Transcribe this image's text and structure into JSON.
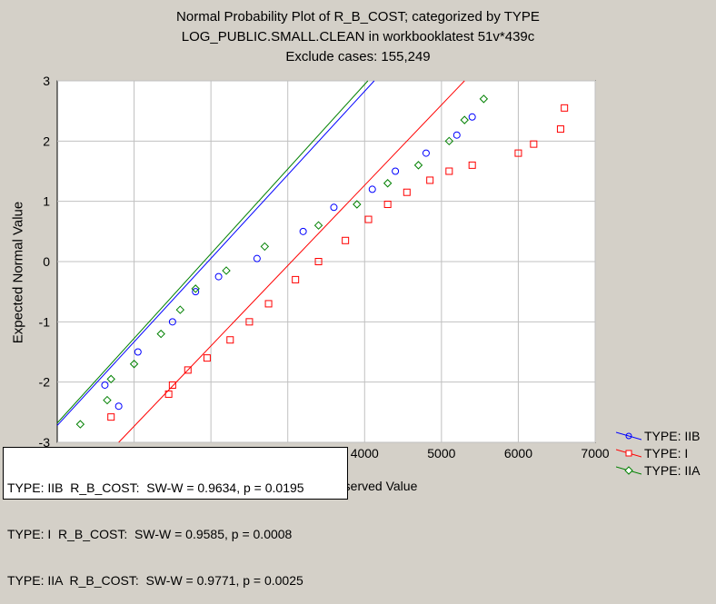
{
  "title_lines": [
    "Normal Probability Plot of R_B_COST; categorized by TYPE",
    "LOG_PUBLIC.SMALL.CLEAN in workbooklatest 51v*439c",
    "Exclude cases: 155,249"
  ],
  "stats": [
    "TYPE: IIB  R_B_COST:  SW-W = 0.9634, p = 0.0195",
    "TYPE: I  R_B_COST:  SW-W = 0.9585, p = 0.0008",
    "TYPE: IIA  R_B_COST:  SW-W = 0.9771, p = 0.0025"
  ],
  "chart_data": {
    "type": "scatter",
    "xlabel": "Observed Value",
    "ylabel": "Expected Normal Value",
    "xlim": [
      0,
      7000
    ],
    "ylim": [
      -3,
      3
    ],
    "x_ticks": [
      1000,
      2000,
      3000,
      4000,
      5000,
      6000,
      7000
    ],
    "y_ticks": [
      -3,
      -2,
      -1,
      0,
      1,
      2,
      3
    ],
    "grid": true,
    "legend_position": "bottom-right",
    "series": [
      {
        "name": "TYPE: IIB",
        "color": "#0000ff",
        "marker": "circle",
        "fit": [
          [
            0,
            -2.72
          ],
          [
            4125,
            3.0
          ]
        ],
        "points": [
          [
            800,
            -2.4
          ],
          [
            620,
            -2.05
          ],
          [
            1050,
            -1.5
          ],
          [
            1500,
            -1.0
          ],
          [
            1800,
            -0.5
          ],
          [
            2100,
            -0.25
          ],
          [
            2600,
            0.05
          ],
          [
            3200,
            0.5
          ],
          [
            3600,
            0.9
          ],
          [
            4100,
            1.2
          ],
          [
            4400,
            1.5
          ],
          [
            4800,
            1.8
          ],
          [
            5200,
            2.1
          ],
          [
            5400,
            2.4
          ]
        ]
      },
      {
        "name": "TYPE: I",
        "color": "#ff0000",
        "marker": "square",
        "fit": [
          [
            800,
            -3.0
          ],
          [
            5300,
            3.0
          ]
        ],
        "points": [
          [
            700,
            -2.58
          ],
          [
            1450,
            -2.2
          ],
          [
            1500,
            -2.05
          ],
          [
            1700,
            -1.8
          ],
          [
            1950,
            -1.6
          ],
          [
            2250,
            -1.3
          ],
          [
            2500,
            -1.0
          ],
          [
            2750,
            -0.7
          ],
          [
            3100,
            -0.3
          ],
          [
            3400,
            0.0
          ],
          [
            3750,
            0.35
          ],
          [
            4050,
            0.7
          ],
          [
            4300,
            0.95
          ],
          [
            4550,
            1.15
          ],
          [
            4850,
            1.35
          ],
          [
            5100,
            1.5
          ],
          [
            5400,
            1.6
          ],
          [
            6000,
            1.8
          ],
          [
            6200,
            1.95
          ],
          [
            6550,
            2.2
          ],
          [
            6600,
            2.55
          ]
        ]
      },
      {
        "name": "TYPE: IIA",
        "color": "#008000",
        "marker": "diamond",
        "fit": [
          [
            0,
            -2.68
          ],
          [
            4042,
            3.0
          ]
        ],
        "points": [
          [
            300,
            -2.7
          ],
          [
            650,
            -2.3
          ],
          [
            700,
            -1.95
          ],
          [
            1000,
            -1.7
          ],
          [
            1350,
            -1.2
          ],
          [
            1600,
            -0.8
          ],
          [
            1800,
            -0.45
          ],
          [
            2200,
            -0.15
          ],
          [
            2700,
            0.25
          ],
          [
            3400,
            0.6
          ],
          [
            3900,
            0.95
          ],
          [
            4300,
            1.3
          ],
          [
            4700,
            1.6
          ],
          [
            5100,
            2.0
          ],
          [
            5300,
            2.35
          ],
          [
            5550,
            2.7
          ]
        ]
      }
    ]
  }
}
